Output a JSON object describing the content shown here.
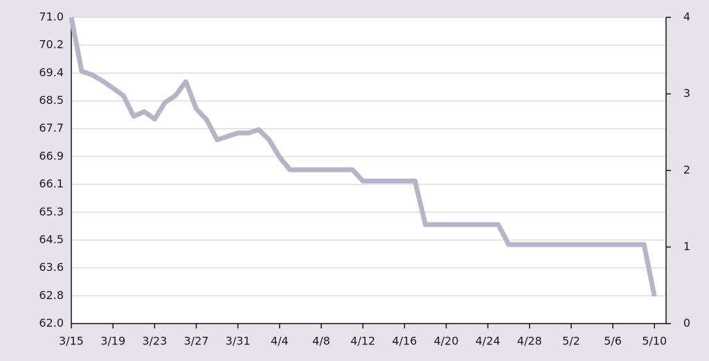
{
  "chart_data": {
    "type": "line",
    "categories": [
      "3/15",
      null,
      null,
      null,
      "3/19",
      null,
      null,
      null,
      "3/23",
      null,
      null,
      null,
      "3/27",
      null,
      null,
      null,
      "3/31",
      null,
      null,
      null,
      "4/4",
      null,
      null,
      null,
      "4/8",
      null,
      null,
      null,
      "4/12",
      null,
      null,
      null,
      "4/16",
      null,
      null,
      null,
      "4/20",
      null,
      null,
      null,
      "4/24",
      null,
      null,
      null,
      "4/28",
      null,
      null,
      null,
      "5/2",
      null,
      null,
      null,
      "5/6",
      null,
      null,
      null,
      "5/10"
    ],
    "series": [
      {
        "color": "#b7b4c7",
        "values": [
          71.0,
          69.41,
          69.31,
          69.13,
          68.92,
          68.7,
          68.09,
          68.23,
          68.01,
          68.5,
          68.7,
          69.11,
          68.31,
          67.99,
          67.4,
          67.5,
          67.6,
          67.6,
          67.7,
          67.4,
          66.89,
          66.52,
          66.52,
          66.52,
          66.52,
          66.52,
          66.52,
          66.52,
          66.19,
          66.19,
          66.19,
          66.19,
          66.19,
          66.19,
          64.91,
          64.91,
          64.91,
          64.91,
          64.91,
          64.91,
          64.91,
          64.91,
          64.32,
          64.32,
          64.32,
          64.32,
          64.32,
          64.32,
          64.32,
          64.32,
          64.32,
          64.32,
          64.32,
          64.32,
          64.32,
          64.32,
          62.8
        ]
      }
    ],
    "ylim": [
      62.0,
      71.0
    ],
    "yticks": [
      {
        "value": 62.0,
        "label": "62.0"
      },
      {
        "value": 62.818,
        "label": "62.8"
      },
      {
        "value": 63.636,
        "label": "63.6"
      },
      {
        "value": 64.455,
        "label": "64.5"
      },
      {
        "value": 65.273,
        "label": "65.3"
      },
      {
        "value": 66.091,
        "label": "66.1"
      },
      {
        "value": 66.909,
        "label": "66.9"
      },
      {
        "value": 67.727,
        "label": "67.7"
      },
      {
        "value": 68.545,
        "label": "68.5"
      },
      {
        "value": 69.364,
        "label": "69.4"
      },
      {
        "value": 70.182,
        "label": "70.2"
      },
      {
        "value": 71.0,
        "label": "71.0"
      }
    ],
    "y2lim": [
      0,
      4
    ],
    "y2ticks": [
      0,
      1,
      2,
      3,
      4
    ],
    "grid": true
  }
}
